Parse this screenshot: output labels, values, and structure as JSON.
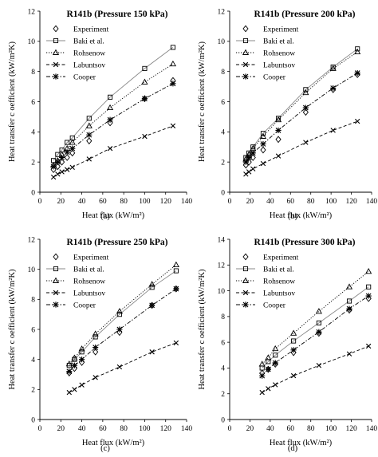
{
  "chart_data": [
    {
      "type": "scatter",
      "caption": "(a)",
      "title": "R141b (Pressure 150 kPa)",
      "xlabel": "Heat flux (kW/m²)",
      "ylabel": "Heat transfer c oefficient  (kW/m²K)",
      "xlim": [
        0,
        140
      ],
      "ylim": [
        0,
        12
      ],
      "xticks": [
        "0",
        "20",
        "40",
        "60",
        "80",
        "100",
        "120",
        "140"
      ],
      "yticks": [
        "0",
        "2",
        "4",
        "6",
        "8",
        "10",
        "12"
      ],
      "legend_position": "top-left",
      "series": [
        {
          "name": "Experiment",
          "marker": "diamond",
          "line": "none",
          "x": [
            13,
            17,
            21,
            26,
            31,
            47,
            67,
            100,
            127
          ],
          "y": [
            1.5,
            1.7,
            2.0,
            2.3,
            2.6,
            3.4,
            4.6,
            6.2,
            7.4
          ]
        },
        {
          "name": "Baki et al.",
          "marker": "square",
          "line": "solid",
          "x": [
            13,
            17,
            21,
            26,
            31,
            47,
            67,
            100,
            127
          ],
          "y": [
            2.1,
            2.5,
            2.8,
            3.3,
            3.6,
            4.9,
            6.3,
            8.2,
            9.6
          ]
        },
        {
          "name": "Rohsenow",
          "marker": "triangle",
          "line": "dotted",
          "x": [
            13,
            17,
            21,
            26,
            31,
            47,
            67,
            100,
            127
          ],
          "y": [
            1.8,
            2.1,
            2.5,
            2.9,
            3.3,
            4.4,
            5.6,
            7.3,
            8.5
          ]
        },
        {
          "name": "Labuntsov",
          "marker": "x",
          "line": "dashed",
          "x": [
            13,
            17,
            21,
            26,
            31,
            47,
            67,
            100,
            127
          ],
          "y": [
            1.0,
            1.2,
            1.35,
            1.5,
            1.65,
            2.2,
            2.9,
            3.7,
            4.4
          ]
        },
        {
          "name": "Cooper",
          "marker": "star",
          "line": "dashdot",
          "x": [
            13,
            17,
            21,
            26,
            31,
            47,
            67,
            100,
            127
          ],
          "y": [
            1.7,
            2.0,
            2.3,
            2.65,
            2.9,
            3.8,
            4.8,
            6.2,
            7.2
          ]
        }
      ]
    },
    {
      "type": "scatter",
      "caption": "(b)",
      "title": "R141b (Pressure 200 kPa)",
      "xlabel": "Heat flux (kW/m²)",
      "ylabel": "Heat transfer c oefficient  (kW/m²K)",
      "xlim": [
        0,
        140
      ],
      "ylim": [
        0,
        12
      ],
      "xticks": [
        "0",
        "20",
        "40",
        "60",
        "80",
        "100",
        "120",
        "140"
      ],
      "yticks": [
        "0",
        "2",
        "4",
        "6",
        "8",
        "10",
        "12"
      ],
      "legend_position": "top-left",
      "series": [
        {
          "name": "Experiment",
          "marker": "diamond",
          "line": "none",
          "x": [
            16,
            19,
            23,
            33,
            48,
            75,
            102,
            126
          ],
          "y": [
            1.8,
            2.0,
            2.3,
            2.8,
            3.5,
            5.3,
            6.8,
            7.8
          ]
        },
        {
          "name": "Baki et al.",
          "marker": "square",
          "line": "solid",
          "x": [
            16,
            19,
            23,
            33,
            48,
            75,
            102,
            126
          ],
          "y": [
            2.3,
            2.6,
            3.0,
            3.9,
            4.9,
            6.8,
            8.3,
            9.5
          ]
        },
        {
          "name": "Rohsenow",
          "marker": "triangle",
          "line": "dotted",
          "x": [
            16,
            19,
            23,
            33,
            48,
            75,
            102,
            126
          ],
          "y": [
            2.2,
            2.5,
            2.9,
            3.7,
            4.8,
            6.6,
            8.2,
            9.3
          ]
        },
        {
          "name": "Labuntsov",
          "marker": "x",
          "line": "dashed",
          "x": [
            16,
            19,
            23,
            33,
            48,
            75,
            102,
            126
          ],
          "y": [
            1.2,
            1.35,
            1.55,
            1.9,
            2.4,
            3.3,
            4.1,
            4.7
          ]
        },
        {
          "name": "Cooper",
          "marker": "star",
          "line": "dashdot",
          "x": [
            16,
            19,
            23,
            33,
            48,
            75,
            102,
            126
          ],
          "y": [
            2.0,
            2.3,
            2.6,
            3.2,
            4.1,
            5.6,
            6.9,
            7.9
          ]
        }
      ]
    },
    {
      "type": "scatter",
      "caption": "(c)",
      "title": "R141b (Pressure 250 kPa)",
      "xlabel": "Heat flux (kW/m²)",
      "ylabel": "Heat transfer c oefficient  (kW/m²K)",
      "xlim": [
        0,
        140
      ],
      "ylim": [
        0,
        12
      ],
      "xticks": [
        "0",
        "20",
        "40",
        "60",
        "80",
        "100",
        "120",
        "140"
      ],
      "yticks": [
        "0",
        "2",
        "4",
        "6",
        "8",
        "10",
        "12"
      ],
      "legend_position": "top-left",
      "series": [
        {
          "name": "Experiment",
          "marker": "diamond",
          "line": "none",
          "x": [
            28,
            33,
            40,
            53,
            76,
            107,
            130
          ],
          "y": [
            3.1,
            3.4,
            3.8,
            4.5,
            5.8,
            7.6,
            8.7
          ]
        },
        {
          "name": "Baki et al.",
          "marker": "square",
          "line": "solid",
          "x": [
            28,
            33,
            40,
            53,
            76,
            107,
            130
          ],
          "y": [
            3.6,
            4.0,
            4.5,
            5.5,
            7.0,
            8.8,
            9.9
          ]
        },
        {
          "name": "Rohsenow",
          "marker": "triangle",
          "line": "dotted",
          "x": [
            28,
            33,
            40,
            53,
            76,
            107,
            130
          ],
          "y": [
            3.7,
            4.1,
            4.7,
            5.7,
            7.2,
            9.0,
            10.3
          ]
        },
        {
          "name": "Labuntsov",
          "marker": "x",
          "line": "dashed",
          "x": [
            28,
            33,
            40,
            53,
            76,
            107,
            130
          ],
          "y": [
            1.8,
            2.0,
            2.3,
            2.8,
            3.5,
            4.5,
            5.1
          ]
        },
        {
          "name": "Cooper",
          "marker": "star",
          "line": "dashdot",
          "x": [
            28,
            33,
            40,
            53,
            76,
            107,
            130
          ],
          "y": [
            3.2,
            3.6,
            4.0,
            4.8,
            6.0,
            7.6,
            8.7
          ]
        }
      ]
    },
    {
      "type": "scatter",
      "caption": "(d)",
      "title": "R141b (Pressure 300 kPa)",
      "xlabel": "Heat flux (kW/m²)",
      "ylabel": "Heat transfer c oefficient  (kW/m²K)",
      "xlim": [
        0,
        140
      ],
      "ylim": [
        0,
        14
      ],
      "xticks": [
        "0",
        "20",
        "40",
        "60",
        "80",
        "100",
        "120",
        "140"
      ],
      "yticks": [
        "0",
        "2",
        "4",
        "6",
        "8",
        "10",
        "12",
        "14"
      ],
      "legend_position": "top-left",
      "series": [
        {
          "name": "Experiment",
          "marker": "diamond",
          "line": "none",
          "x": [
            32,
            38,
            45,
            63,
            88,
            118,
            137
          ],
          "y": [
            3.6,
            3.9,
            4.3,
            5.2,
            6.7,
            8.5,
            9.4
          ]
        },
        {
          "name": "Baki et al.",
          "marker": "square",
          "line": "solid",
          "x": [
            32,
            38,
            45,
            63,
            88,
            118,
            137
          ],
          "y": [
            4.0,
            4.5,
            5.0,
            6.1,
            7.5,
            9.2,
            10.3
          ]
        },
        {
          "name": "Rohsenow",
          "marker": "triangle",
          "line": "dotted",
          "x": [
            32,
            38,
            45,
            63,
            88,
            118,
            137
          ],
          "y": [
            4.3,
            4.8,
            5.5,
            6.7,
            8.4,
            10.3,
            11.5
          ]
        },
        {
          "name": "Labuntsov",
          "marker": "x",
          "line": "dashed",
          "x": [
            32,
            38,
            45,
            63,
            88,
            118,
            137
          ],
          "y": [
            2.1,
            2.4,
            2.7,
            3.4,
            4.2,
            5.1,
            5.7
          ]
        },
        {
          "name": "Cooper",
          "marker": "star",
          "line": "dashdot",
          "x": [
            32,
            38,
            45,
            63,
            88,
            118,
            137
          ],
          "y": [
            3.4,
            3.9,
            4.4,
            5.4,
            6.8,
            8.6,
            9.6
          ]
        }
      ]
    }
  ]
}
